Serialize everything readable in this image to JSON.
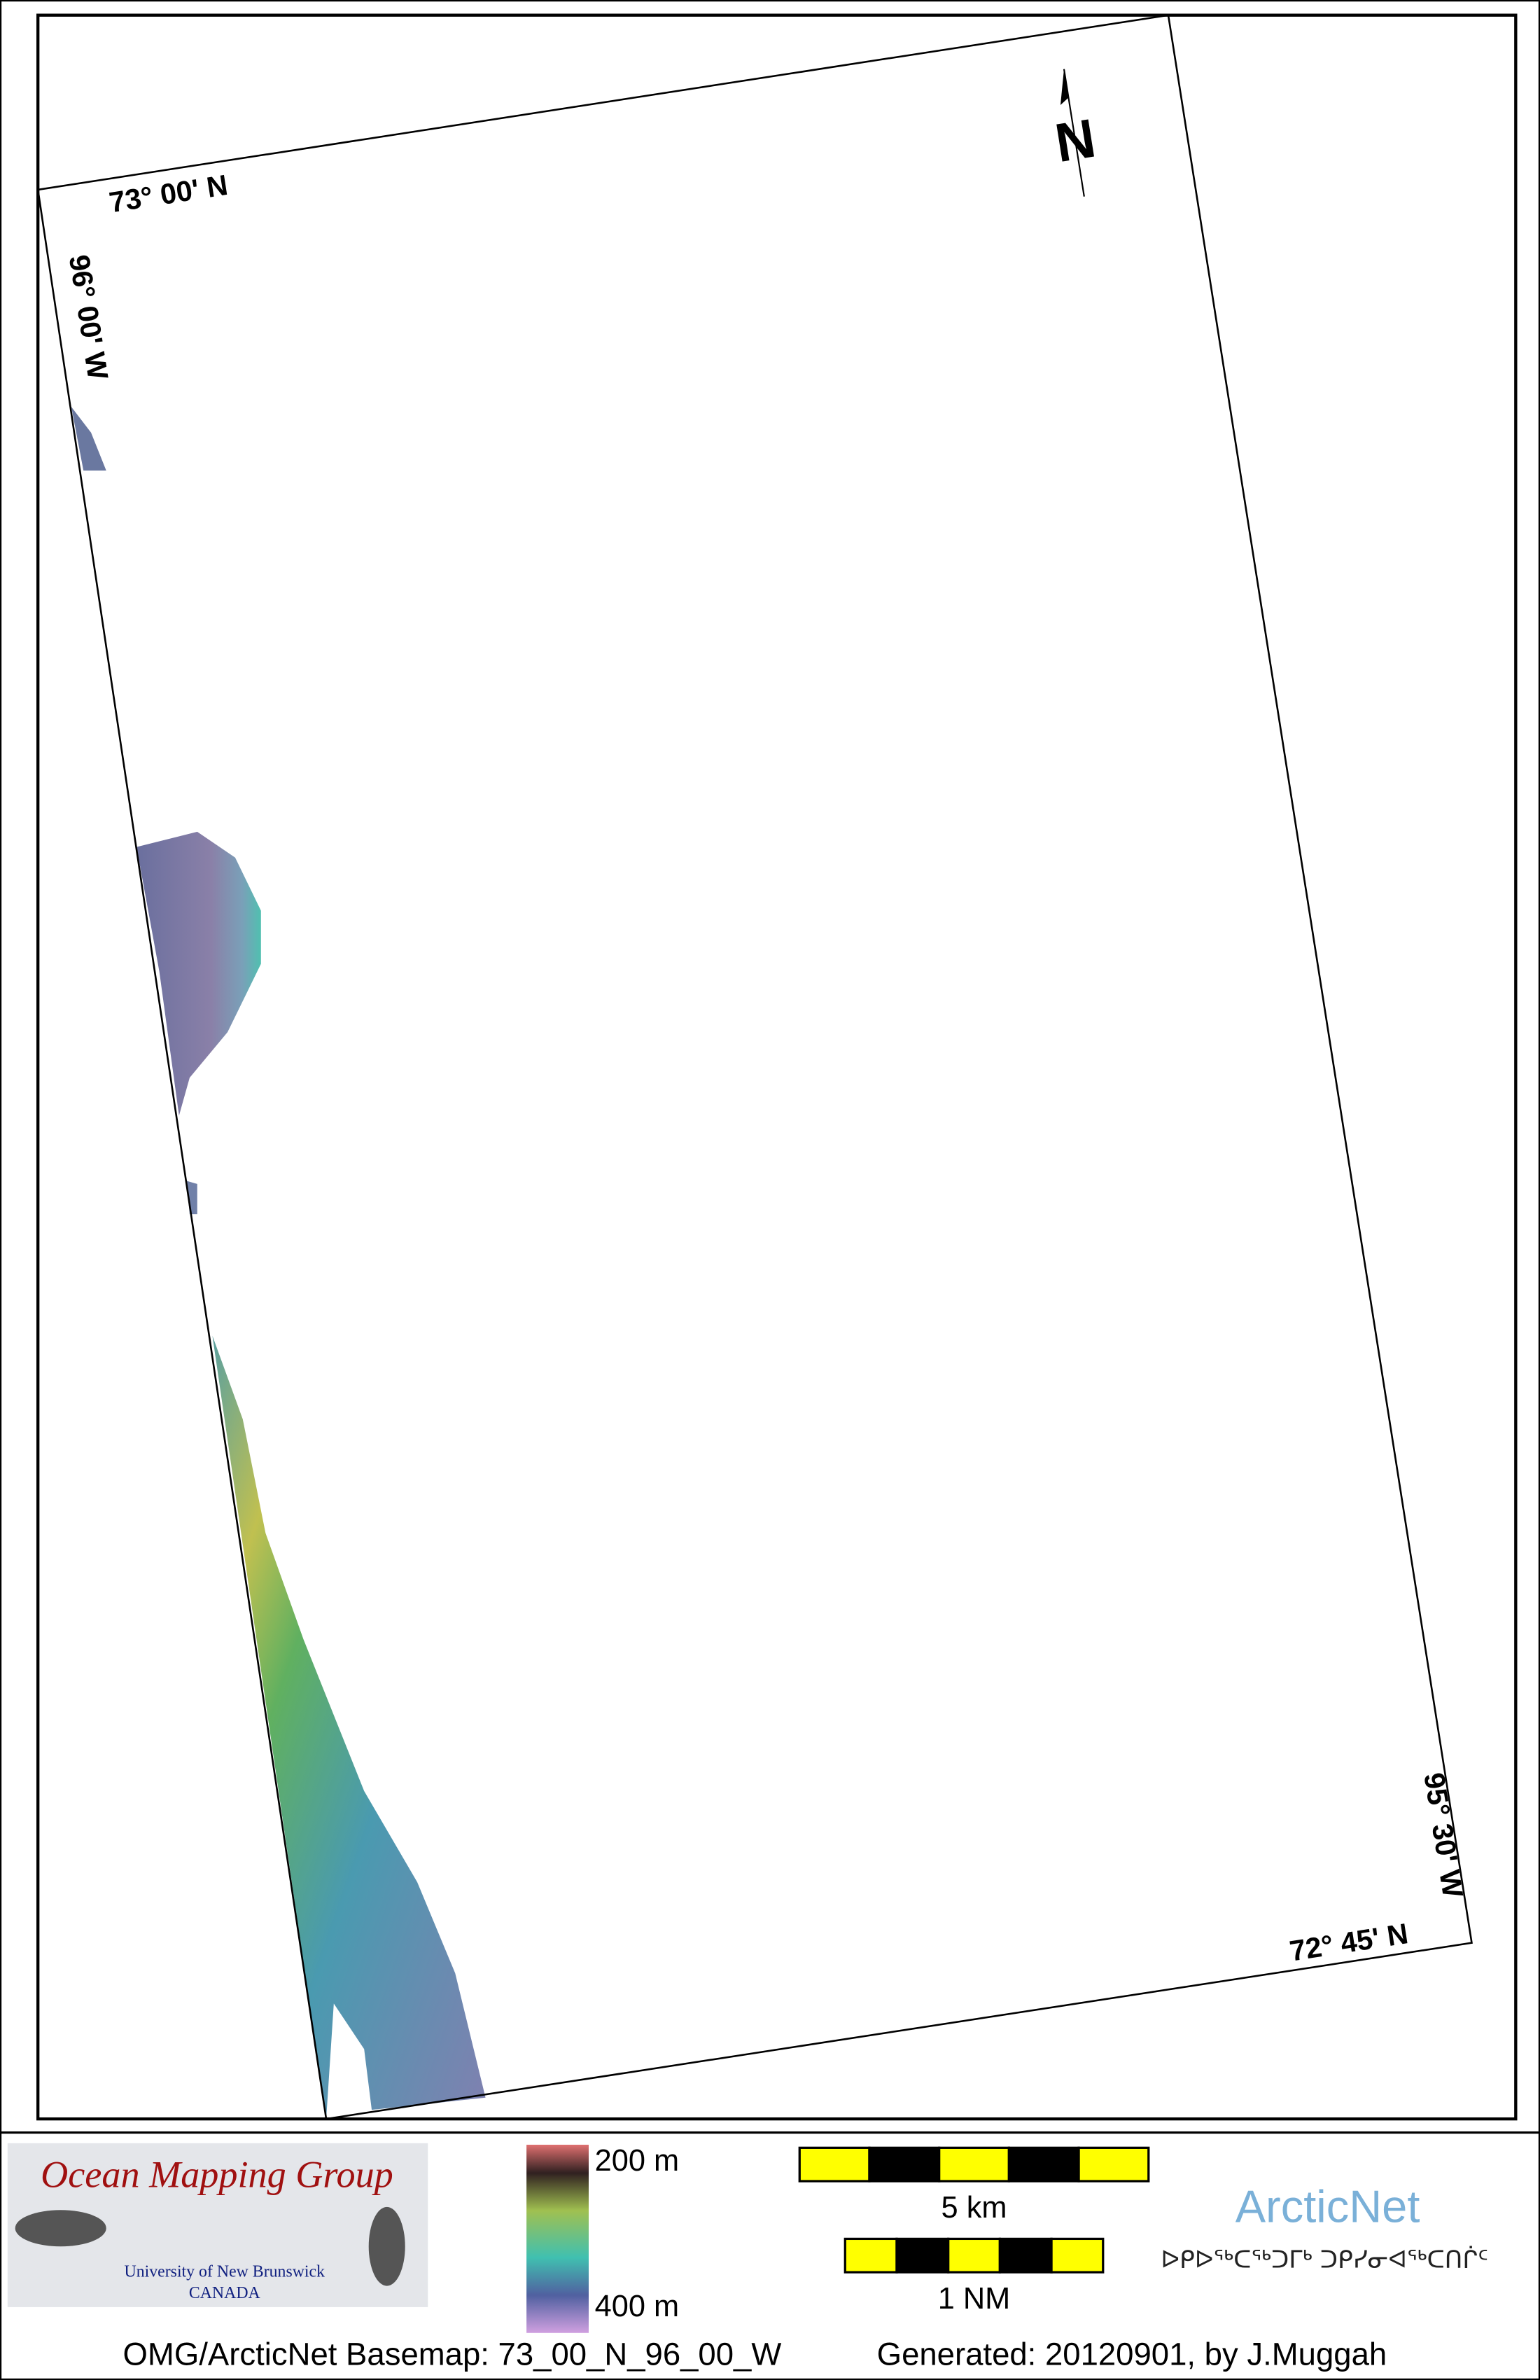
{
  "map": {
    "north_arrow": "N",
    "grid_labels": {
      "top_lat": "73° 00' N",
      "left_lon": "96° 00' W",
      "right_lon": "95° 30' W",
      "bottom_lat": "72° 45' N"
    }
  },
  "legend": {
    "logo": {
      "title": "Ocean Mapping Group",
      "university": "University of New Brunswick",
      "country": "CANADA"
    },
    "depth_scale": {
      "top": "200 m",
      "bottom": "400 m"
    },
    "scale_bars": {
      "km": "5 km",
      "nm": "1 NM"
    },
    "arcticnet": {
      "name": "ArcticNet",
      "inuktitut": "ᐅᑭᐅᖅᑕᖅᑐᒥᒃ ᑐᑭᓯᓂᐊᖅᑕᑎᒌᑦ"
    }
  },
  "footer": {
    "basemap": "OMG/ArcticNet Basemap: 73_00_N_96_00_W",
    "generated": "Generated: 20120901, by J.Muggah"
  }
}
